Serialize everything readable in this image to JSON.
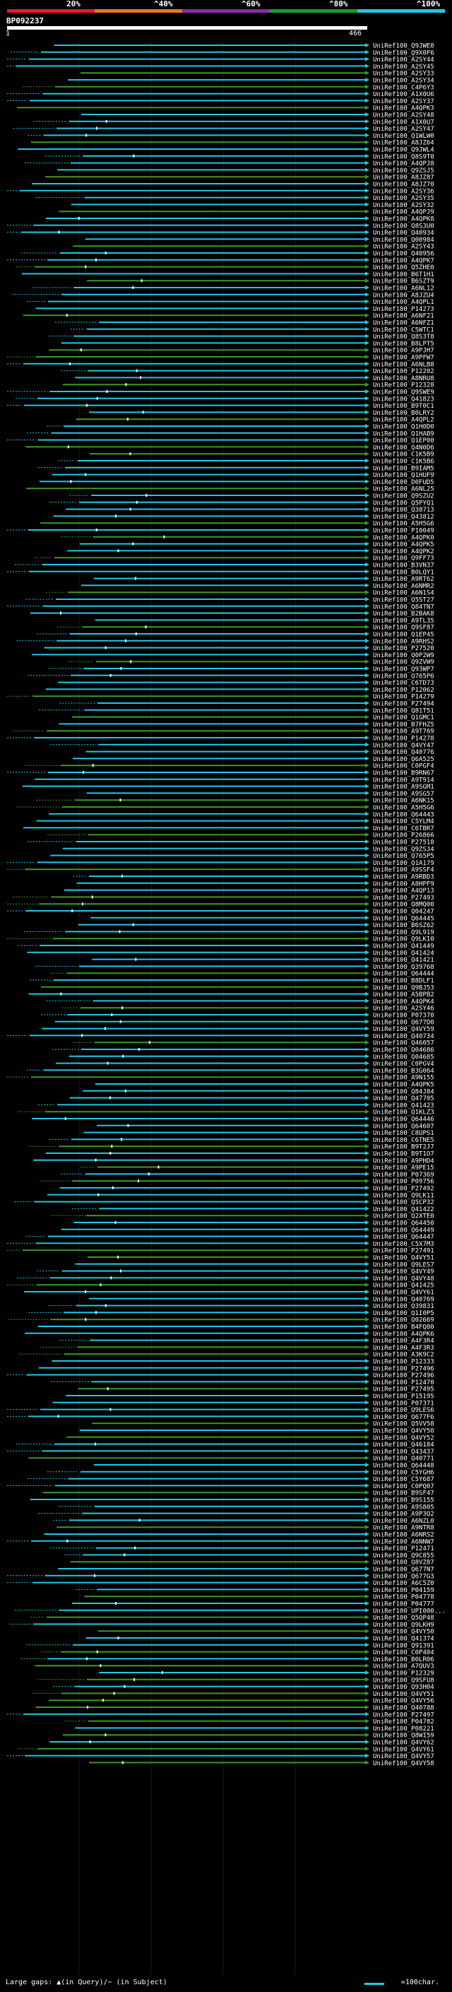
{
  "chart_data": {
    "type": "alignment-overview",
    "query_id": "BP092237",
    "axis": {
      "start": "1",
      "end": "466"
    },
    "query_length": 466,
    "identity_legend": [
      {
        "label": "20%",
        "color": "#e8182c"
      },
      {
        "label": "^40%",
        "color": "#e8781c"
      },
      {
        "label": "^60%",
        "color": "#8c2ca8"
      },
      {
        "label": "^80%",
        "color": "#1a9a2c"
      },
      {
        "label": "^100%",
        "color": "#1ec8e4"
      }
    ],
    "hit_color_high": "#1ec8e4",
    "hit_color_mid": "#3a9a24",
    "hits": [
      "UniRef100_Q9JWE0",
      "UniRef100_Q9X0F6",
      "UniRef100_A2SY44",
      "UniRef100_A2SY45",
      "UniRef100_A2SY33",
      "UniRef100_A2SY34",
      "UniRef100_C4P6Y3",
      "UniRef100_A1X0U6",
      "UniRef100_A2SY37",
      "UniRef100_A4QPK3",
      "UniRef100_A2SY48",
      "UniRef100_A1X0U7",
      "UniRef100_A2SY47",
      "UniRef100_Q1WLW0",
      "UniRef100_A8JZ64",
      "UniRef100_Q9JWL4",
      "UniRef100_Q8S9T0",
      "UniRef100_A4QPJ8",
      "UniRef100_Q9ZSJ5",
      "UniRef100_A8JZ87",
      "UniRef100_A8JZ70",
      "UniRef100_A2SY36",
      "UniRef100_A2SY35",
      "UniRef100_A2SY32",
      "UniRef100_A4QPJ9",
      "UniRef100_A4QPK8",
      "UniRef100_Q8S3U0",
      "UniRef100_Q40934",
      "UniRef100_Q00984",
      "UniRef100_A2SY43",
      "UniRef100_Q40956",
      "UniRef100_A4QPK7",
      "UniRef100_Q5ZHE0",
      "UniRef100_B6T1H1",
      "UniRef100_B6SZT9",
      "UniRef100_A6NL12",
      "UniRef100_A8JZU4",
      "UniRef100_A4QPL1",
      "UniRef100_P14273",
      "UniRef100_A6NF21",
      "UniRef100_A6NFZ1",
      "UniRef100_C5WTC1",
      "UniRef100_Q8S3T8",
      "UniRef100_B8LPT5",
      "UniRef100_A9PJH7",
      "UniRef100_A9PFW7",
      "UniRef100_A6NLB8",
      "UniRef100_P12202",
      "UniRef100_A8NRU8",
      "UniRef100_P12328",
      "UniRef100_Q9SWE9",
      "UniRef100_Q41823",
      "UniRef100_B9T0C1",
      "UniRef100_B0LRY2",
      "UniRef100_A4QPL2",
      "UniRef100_Q1H0D0",
      "UniRef100_Q1HAB9",
      "UniRef100_Q1EP00",
      "UniRef100_Q4N0D6",
      "UniRef100_C1K5B9",
      "UniRef100_C1K5B6",
      "UniRef100_B9IAM5",
      "UniRef100_Q1HUF9",
      "UniRef100_D0FUD5",
      "UniRef100_A6NL25",
      "UniRef100_Q9SZU2",
      "UniRef100_Q5PYQ1",
      "UniRef100_Q38713",
      "UniRef100_Q43812",
      "UniRef100_A5H5G6",
      "UniRef100_P10049",
      "UniRef100_A4QPK0",
      "UniRef100_A4QPK5",
      "UniRef100_A4QPK2",
      "UniRef100_Q9FF73",
      "UniRef100_B3VN37",
      "UniRef100_B0LQY1",
      "UniRef100_A9RT62",
      "UniRef100_A6NMR2",
      "UniRef100_A6N1S4",
      "UniRef100_Q5ST27",
      "UniRef100_Q84TN7",
      "UniRef100_B2BAK8",
      "UniRef100_A9TL35",
      "UniRef100_Q9SF87",
      "UniRef100_Q1EP45",
      "UniRef100_A9RHS2",
      "UniRef100_P27520",
      "UniRef100_Q0P2W9",
      "UniRef100_Q9ZVW9",
      "UniRef100_Q93WP7",
      "UniRef100_Q765P6",
      "UniRef100_C6TD73",
      "UniRef100_P12062",
      "UniRef100_P14279",
      "UniRef100_P27494",
      "UniRef100_Q81T51",
      "UniRef100_Q1GMC1",
      "UniRef100_B7FHZ5",
      "UniRef100_A9T769",
      "UniRef100_P14278",
      "UniRef100_Q4VY47",
      "UniRef100_Q40776",
      "UniRef100_Q6A525",
      "UniRef100_C0PGF4",
      "UniRef100_B9RN67",
      "UniRef100_A9T914",
      "UniRef100_A9SGM1",
      "UniRef100_A9SG57",
      "UniRef100_A6NK15",
      "UniRef100_A5H5G6",
      "UniRef100_Q64443",
      "UniRef100_C5YLM4",
      "UniRef100_C6TBR7",
      "UniRef100_P26866",
      "UniRef100_P27518",
      "UniRef100_Q9ZSJ4",
      "UniRef100_Q765P5",
      "UniRef100_Q1A179",
      "UniRef100_A9SSF4",
      "UniRef100_A9RBD3",
      "UniRef100_A8HPF9",
      "UniRef100_A4QP13",
      "UniRef100_P27493",
      "UniRef100_Q8MQ00",
      "UniRef100_Q04247",
      "UniRef100_Q64445",
      "UniRef100_B6SZ62",
      "UniRef100_Q9L919",
      "UniRef100_Q9LKI0",
      "UniRef100_Q41449",
      "UniRef100_Q41424",
      "UniRef100_Q41421",
      "UniRef100_Q39768",
      "UniRef100_Q64444",
      "UniRef100_B8DLF1",
      "UniRef100_Q9BJ53",
      "UniRef100_A5BPB2",
      "UniRef100_A4QPK4",
      "UniRef100_A2SY46",
      "UniRef100_P07370",
      "UniRef100_Q677D0",
      "UniRef100_Q4VY59",
      "UniRef100_Q40734",
      "UniRef100_Q46057",
      "UniRef100_Q04686",
      "UniRef100_Q04685",
      "UniRef100_C0PGV4",
      "UniRef100_B3G064",
      "UniRef100_A9N155",
      "UniRef100_A4QPK5",
      "UniRef100_Q84J84",
      "UniRef100_Q47705",
      "UniRef100_Q41423",
      "UniRef100_Q1KLZ3",
      "UniRef100_Q64446",
      "UniRef100_Q64607",
      "UniRef100_C8UPS1",
      "UniRef100_C6TNE5",
      "UniRef100_B9T2J7",
      "UniRef100_B9T1O7",
      "UniRef100_A9PHD4",
      "UniRef100_A9PE15",
      "UniRef100_P07369",
      "UniRef100_P09756",
      "UniRef100_P27492",
      "UniRef100_Q9LK11",
      "UniRef100_Q5CP32",
      "UniRef100_Q41422",
      "UniRef100_Q2XTE0",
      "UniRef100_Q64450",
      "UniRef100_Q64449",
      "UniRef100_Q64447",
      "UniRef100_C5X7M3",
      "UniRef100_P27491",
      "UniRef100_Q4VY51",
      "UniRef100_Q9LES7",
      "UniRef100_Q4VY49",
      "UniRef100_Q4VY48",
      "UniRef100_Q41425",
      "UniRef100_Q4VY61",
      "UniRef100_Q40769",
      "UniRef100_Q39831",
      "UniRef100_Q1I0P5",
      "UniRef100_Q02669",
      "UniRef100_B4FQ80",
      "UniRef100_A4QPK6",
      "UniRef100_A4F3R4",
      "UniRef100_A4F3R3",
      "UniRef100_A3K9C2",
      "UniRef100_P12333",
      "UniRef100_P27496",
      "UniRef100_P27496",
      "UniRef100_P12470",
      "UniRef100_P27495",
      "UniRef100_P15195",
      "UniRef100_P07371",
      "UniRef100_Q9LES6",
      "UniRef100_Q677F6",
      "UniRef100_Q5VV58",
      "UniRef100_Q4VY50",
      "UniRef100_Q4VY52",
      "UniRef100_Q46184",
      "UniRef100_Q43437",
      "UniRef100_Q40771",
      "UniRef100_Q64448",
      "UniRef100_C5YGH6",
      "UniRef100_C5Y687",
      "UniRef100_C0PQ07",
      "UniRef100_B9SF47",
      "UniRef100_B9S155",
      "UniRef100_A9S805",
      "UniRef100_A9P3Q2",
      "UniRef100_A6NZL0",
      "UniRef100_A9NTR8",
      "UniRef100_A6NRS2",
      "UniRef100_A6NNW7",
      "UniRef100_P12471",
      "UniRef100_Q9C855",
      "UniRef100_Q8VZ87",
      "UniRef100_Q677N7",
      "UniRef100_Q677G3",
      "UniRef100_A6C5Z0",
      "UniRef100_P04159",
      "UniRef100_P04778",
      "UniRef100_P04777",
      "UniRef100_UPI000...",
      "UniRef100_Q5QP48",
      "UniRef100_Q9LKH9",
      "UniRef100_Q4VY50",
      "UniRef100_Q41374",
      "UniRef100_Q91391",
      "UniRef100_C0P404",
      "UniRef100_B0LR06",
      "UniRef100_A7QUV3",
      "UniRef100_P12329",
      "UniRef100_Q9SFU8",
      "UniRef100_Q93H04",
      "UniRef100_Q4VY51",
      "UniRef100_Q4VY56",
      "UniRef100_Q40788",
      "UniRef100_P27497",
      "UniRef100_P04782",
      "UniRef100_P08221",
      "UniRef100_Q8WI59",
      "UniRef100_Q4VY62",
      "UniRef100_Q4VY61",
      "UniRef100_Q4VY57",
      "UniRef100_Q4VY58"
    ]
  },
  "footer": {
    "left": "Large gaps: ▲(in Query)/~ (in Subject)",
    "right": "=100char."
  }
}
